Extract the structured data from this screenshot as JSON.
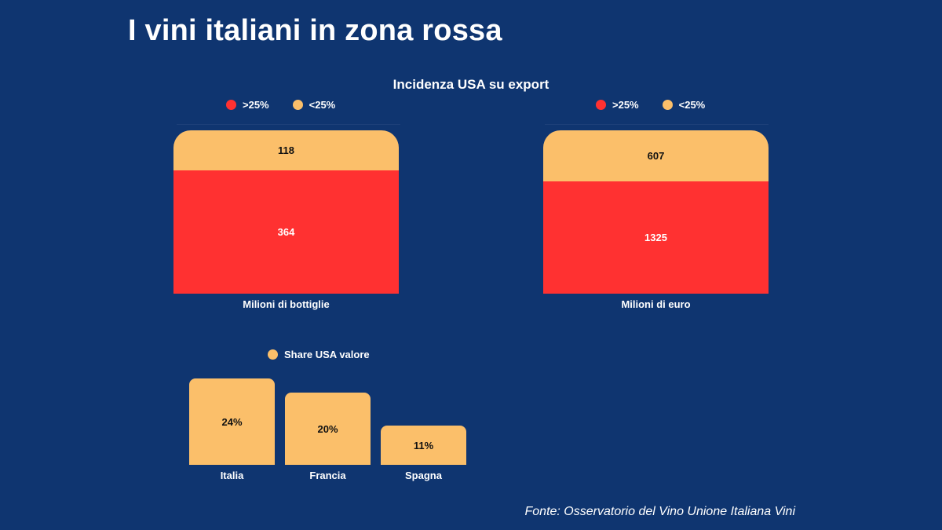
{
  "header": {
    "title": "I vini italiani in zona rossa",
    "subtitle": "Incidenza USA su export"
  },
  "colors": {
    "background": "#0f3570",
    "high": "#ff3131",
    "low": "#fbbf6a"
  },
  "chart_data": [
    {
      "type": "bar",
      "stacked": true,
      "categories": [
        "Milioni di bottiglie"
      ],
      "series": [
        {
          "name": ">25%",
          "values": [
            364
          ],
          "color": "#ff3131"
        },
        {
          "name": "<25%",
          "values": [
            118
          ],
          "color": "#fbbf6a"
        }
      ],
      "legend": "top"
    },
    {
      "type": "bar",
      "stacked": true,
      "categories": [
        "Milioni di euro"
      ],
      "series": [
        {
          "name": ">25%",
          "values": [
            1325
          ],
          "color": "#ff3131"
        },
        {
          "name": "<25%",
          "values": [
            607
          ],
          "color": "#fbbf6a"
        }
      ],
      "legend": "top"
    },
    {
      "type": "bar",
      "categories": [
        "Italia",
        "Francia",
        "Spagna"
      ],
      "series": [
        {
          "name": "Share USA valore",
          "values": [
            24,
            20,
            11
          ],
          "color": "#fbbf6a"
        }
      ],
      "value_labels": [
        "24%",
        "20%",
        "11%"
      ],
      "unit": "%",
      "legend": "top"
    }
  ],
  "source": "Fonte: Osservatorio del Vino Unione Italiana Vini"
}
